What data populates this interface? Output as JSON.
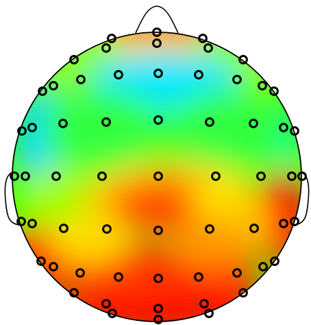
{
  "figure": {
    "type": "eeg-topographic-scalp-map",
    "colormap": {
      "name": "jet",
      "stops": [
        "#00e5ff",
        "#00ff66",
        "#b8ff00",
        "#ffff00",
        "#ff9900",
        "#ff3300",
        "#ff0000"
      ]
    },
    "outline_color": "#000000",
    "electrode_color": "#000000",
    "background": "#ffffff",
    "electrode_count": 64
  }
}
